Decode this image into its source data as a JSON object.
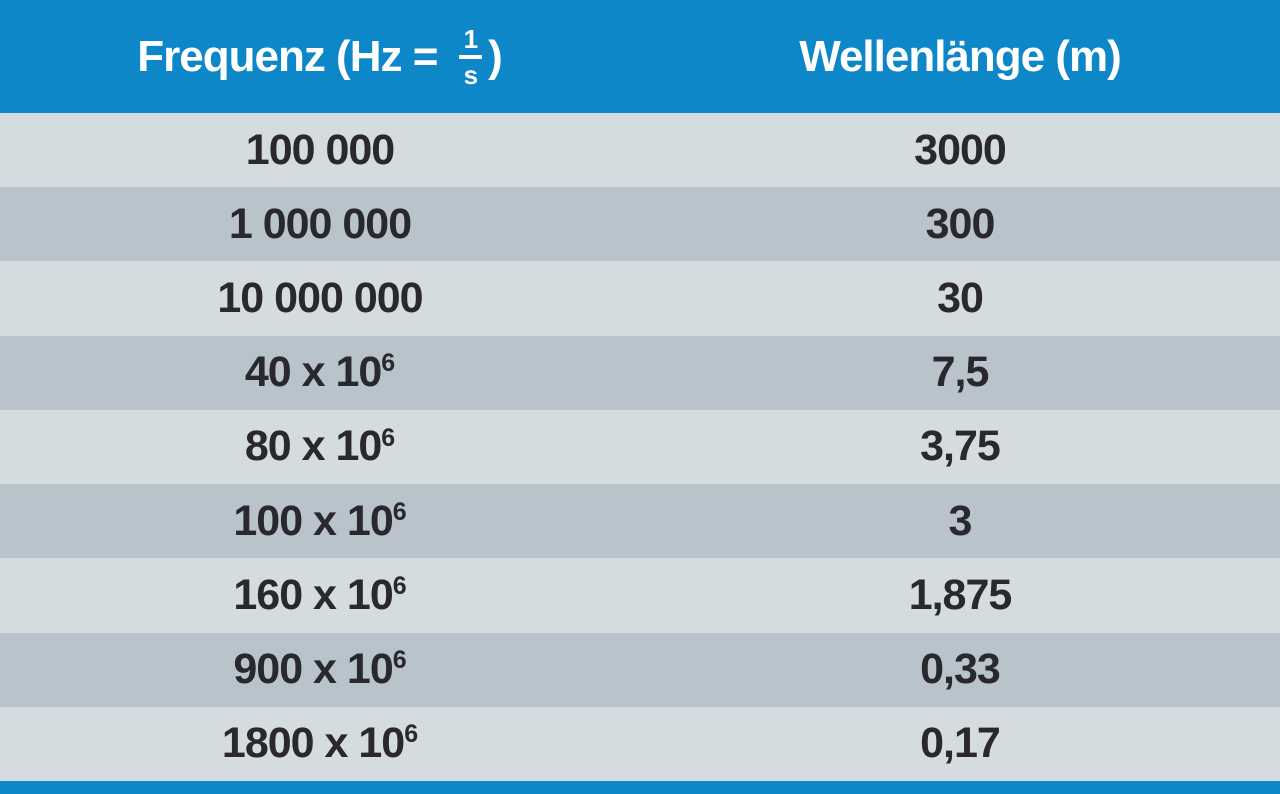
{
  "table": {
    "header": {
      "frequency_prefix": "Frequenz (Hz = ",
      "frequency_frac_numerator": "1",
      "frequency_frac_denominator": "s",
      "frequency_suffix": ")",
      "wavelength": "Wellenlänge (m)"
    },
    "rows": [
      {
        "frequency_base": "100 000",
        "frequency_exponent": "",
        "wavelength": "3000"
      },
      {
        "frequency_base": "1 000 000",
        "frequency_exponent": "",
        "wavelength": "300"
      },
      {
        "frequency_base": "10 000 000",
        "frequency_exponent": "",
        "wavelength": "30"
      },
      {
        "frequency_base": "40 x 10",
        "frequency_exponent": "6",
        "wavelength": "7,5"
      },
      {
        "frequency_base": "80 x 10",
        "frequency_exponent": "6",
        "wavelength": "3,75"
      },
      {
        "frequency_base": "100 x 10",
        "frequency_exponent": "6",
        "wavelength": "3"
      },
      {
        "frequency_base": "160 x 10",
        "frequency_exponent": "6",
        "wavelength": "1,875"
      },
      {
        "frequency_base": "900 x 10",
        "frequency_exponent": "6",
        "wavelength": "0,33"
      },
      {
        "frequency_base": "1800 x 10",
        "frequency_exponent": "6",
        "wavelength": "0,17"
      }
    ],
    "colors": {
      "header_background": "#0d87c8",
      "row_light": "#d4dce0",
      "row_dark": "#b9c3cb",
      "text": "#29282e",
      "header_text": "#ffffff",
      "bottom_bar": "#0d87c8"
    }
  }
}
